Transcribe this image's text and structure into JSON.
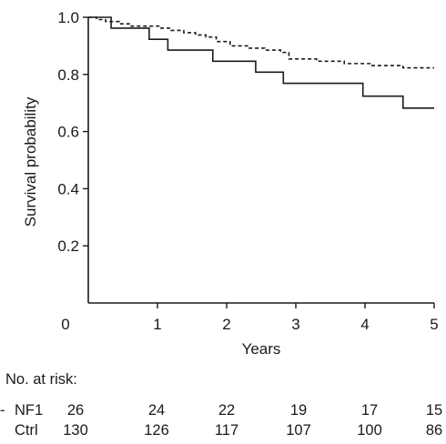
{
  "chart_data": {
    "type": "line",
    "title": "",
    "xlabel": "Years",
    "ylabel": "Survival probability",
    "xlim": [
      0,
      5
    ],
    "ylim": [
      0,
      1.0
    ],
    "x_ticks": [
      0,
      1,
      2,
      3,
      4,
      5
    ],
    "x_tick_labels": [
      "0",
      "1",
      "2",
      "3",
      "4",
      "5"
    ],
    "y_ticks": [
      0.2,
      0.4,
      0.6,
      0.8,
      1.0
    ],
    "y_tick_labels": [
      "0.2",
      "0.4",
      "0.6",
      "0.8",
      "1.0"
    ],
    "grid": false,
    "series": [
      {
        "style": "solid",
        "step": true,
        "x": [
          0,
          0.33,
          0.88,
          1.15,
          1.8,
          2.42,
          2.82,
          3.97,
          4.55,
          5.0
        ],
        "y": [
          1.0,
          0.962,
          0.923,
          0.885,
          0.846,
          0.808,
          0.769,
          0.724,
          0.682,
          0.682
        ]
      },
      {
        "style": "dashed",
        "step": true,
        "x": [
          0,
          0.12,
          0.25,
          0.45,
          0.62,
          0.85,
          1.05,
          1.2,
          1.38,
          1.55,
          1.7,
          1.85,
          2.05,
          2.3,
          2.55,
          2.78,
          2.9,
          3.3,
          3.7,
          4.1,
          4.55,
          5.0
        ],
        "y": [
          1.0,
          0.992,
          0.985,
          0.977,
          0.969,
          0.969,
          0.962,
          0.954,
          0.946,
          0.938,
          0.931,
          0.915,
          0.9,
          0.892,
          0.885,
          0.877,
          0.854,
          0.846,
          0.838,
          0.831,
          0.823,
          0.823
        ]
      }
    ],
    "risk_table": {
      "title": "No. at risk:",
      "rows": [
        {
          "label": "NF1",
          "prefix": "-",
          "values": [
            "26",
            "24",
            "22",
            "19",
            "17",
            "15"
          ]
        },
        {
          "label": "Ctrl",
          "prefix": "",
          "values": [
            "130",
            "126",
            "117",
            "107",
            "100",
            "86"
          ]
        }
      ]
    }
  }
}
